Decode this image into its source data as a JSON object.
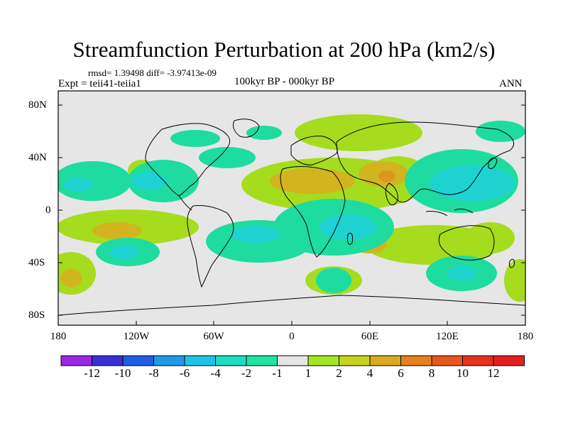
{
  "title": "Streamfunction Perturbation at 200 hPa (km2/s)",
  "stats": "rmsd= 1.39498  diff= -3.97413e-09",
  "experiment": "Expt = teii41-teiia1",
  "period": "100kyr BP - 000kyr BP",
  "season": "ANN",
  "lat_ticks": [
    "80N",
    "40N",
    "0",
    "40S",
    "80S"
  ],
  "lon_ticks": [
    "180",
    "120W",
    "60W",
    "0",
    "60E",
    "120E",
    "180"
  ],
  "colorbar": {
    "labels": [
      "-12",
      "-10",
      "-8",
      "-6",
      "-4",
      "-2",
      "-1",
      "1",
      "2",
      "4",
      "6",
      "8",
      "10",
      "12"
    ],
    "colors": [
      "#9b26e6",
      "#3c2ed6",
      "#1f5ee6",
      "#1e9be8",
      "#1ec4e6",
      "#1edcc4",
      "#1ee6a0",
      "#e6e6e6",
      "#a6e61e",
      "#c6d41e",
      "#dcaa1e",
      "#e6821e",
      "#e6561e",
      "#e6321e",
      "#e61e1e"
    ]
  },
  "map_colors": {
    "land_outline": "#000000",
    "background": "#e6e6e6",
    "pos_weak": "#a6dc1e",
    "pos_mid": "#d2b41e",
    "pos_strong": "#dc961e",
    "neg_weak": "#1edca0",
    "neg_mid": "#1ed2d2",
    "neg_strong": "#1eaadc"
  }
}
